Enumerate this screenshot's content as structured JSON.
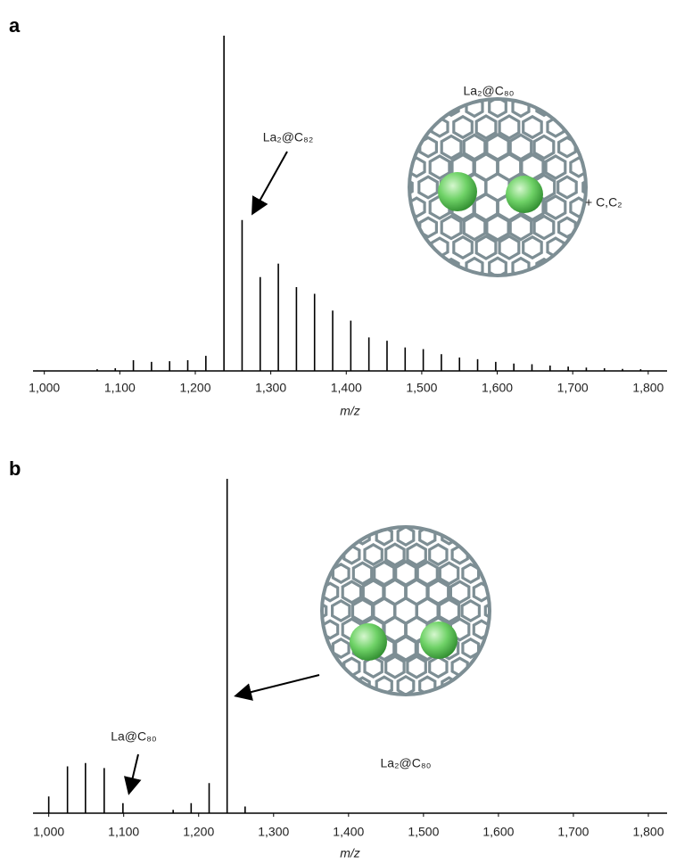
{
  "chart_data": [
    {
      "type": "stem",
      "panel_label": "a",
      "xlabel": "m/z",
      "color": "#000000",
      "xlim": [
        985,
        1825
      ],
      "ylim": [
        0,
        100
      ],
      "xticks": [
        {
          "value": 1000,
          "label": "1,000"
        },
        {
          "value": 1100,
          "label": "1,100"
        },
        {
          "value": 1200,
          "label": "1,200"
        },
        {
          "value": 1300,
          "label": "1,300"
        },
        {
          "value": 1400,
          "label": "1,400"
        },
        {
          "value": 1500,
          "label": "1,500"
        },
        {
          "value": 1600,
          "label": "1,600"
        },
        {
          "value": 1700,
          "label": "1,700"
        },
        {
          "value": 1800,
          "label": "1,800"
        }
      ],
      "x": [
        1070,
        1094,
        1118,
        1142,
        1166,
        1190,
        1214,
        1238,
        1262,
        1286,
        1310,
        1334,
        1358,
        1382,
        1406,
        1430,
        1454,
        1478,
        1502,
        1526,
        1550,
        1574,
        1598,
        1622,
        1646,
        1670,
        1694,
        1718,
        1742,
        1766,
        1790
      ],
      "values": [
        0.5,
        0.8,
        3.2,
        2.7,
        2.9,
        3.2,
        4.5,
        100,
        45,
        28,
        32,
        25,
        23,
        18,
        15,
        10,
        9,
        7,
        6.5,
        5,
        4,
        3.5,
        2.7,
        2.2,
        2,
        1.6,
        1.3,
        1,
        0.8,
        0.6,
        0.5
      ],
      "annotations": [
        "La₂@C₈₂",
        "La₂@C₈₀",
        "+ C,C₂"
      ]
    },
    {
      "type": "stem",
      "panel_label": "b",
      "xlabel": "m/z",
      "color": "#000000",
      "xlim": [
        979,
        1825
      ],
      "ylim": [
        0,
        100
      ],
      "xticks": [
        {
          "value": 1000,
          "label": "1,000"
        },
        {
          "value": 1100,
          "label": "1,100"
        },
        {
          "value": 1200,
          "label": "1,200"
        },
        {
          "value": 1300,
          "label": "1,300"
        },
        {
          "value": 1400,
          "label": "1,400"
        },
        {
          "value": 1500,
          "label": "1,500"
        },
        {
          "value": 1600,
          "label": "1,600"
        },
        {
          "value": 1700,
          "label": "1,700"
        },
        {
          "value": 1800,
          "label": "1,800"
        }
      ],
      "x": [
        1000,
        1025,
        1049,
        1074,
        1099,
        1166,
        1190,
        1214,
        1238,
        1262
      ],
      "values": [
        5,
        14,
        15,
        13.5,
        3,
        1,
        3,
        9,
        100,
        2
      ],
      "annotations": [
        "La@C₈₀",
        "La₂@C₈₀"
      ]
    }
  ]
}
